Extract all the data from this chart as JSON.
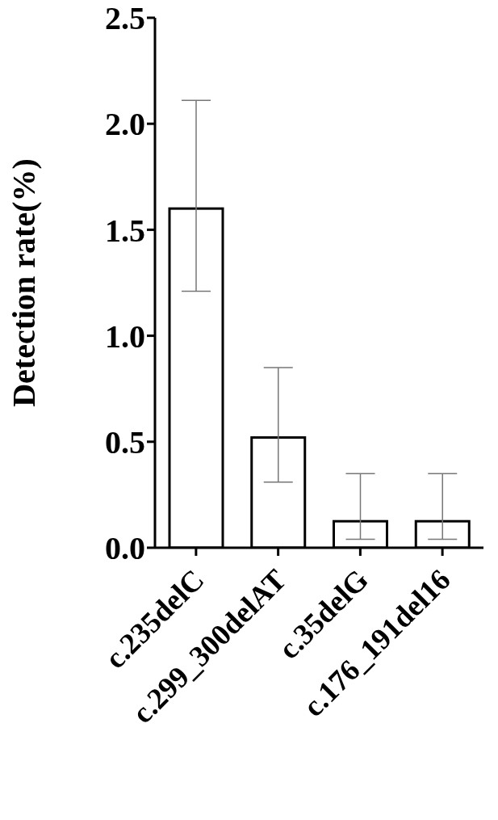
{
  "chart_data": {
    "type": "bar",
    "ylabel": "Detection rate(%)",
    "categories": [
      "c.235delC",
      "c.299_300delAT",
      "c.35delG",
      "c.176_191del16"
    ],
    "values": [
      1.6,
      0.52,
      0.125,
      0.125
    ],
    "errors": [
      [
        1.21,
        2.11
      ],
      [
        0.31,
        0.85
      ],
      [
        0.04,
        0.35
      ],
      [
        0.04,
        0.35
      ]
    ],
    "color": "#ffffff",
    "ylim": [
      0,
      2.5
    ],
    "yticks": [
      {
        "value": 0,
        "label": "0.0"
      },
      {
        "value": 0.5,
        "label": "0.5"
      },
      {
        "value": 1,
        "label": "1.0"
      },
      {
        "value": 1.5,
        "label": "1.5"
      },
      {
        "value": 2,
        "label": "2.0"
      },
      {
        "value": 2.5,
        "label": "2.5"
      }
    ],
    "grid": false,
    "legend": false
  }
}
